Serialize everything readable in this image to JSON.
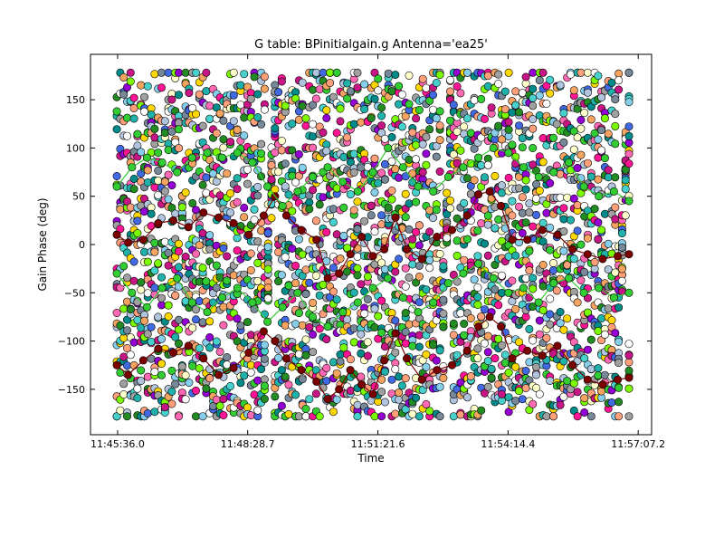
{
  "chart_data": {
    "type": "scatter",
    "title": "G table: BPinitialgain.g       Antenna='ea25'",
    "xlabel": "Time",
    "ylabel": "Gain Phase (deg)",
    "x_ticks": [
      {
        "t": 42336.0,
        "label": "11:45:36.0"
      },
      {
        "t": 42508.7,
        "label": "11:48:28.7"
      },
      {
        "t": 42681.6,
        "label": "11:51:21.6"
      },
      {
        "t": 42854.4,
        "label": "11:54:14.4"
      },
      {
        "t": 43027.2,
        "label": "11:57:07.2"
      }
    ],
    "y_ticks": [
      -150,
      -100,
      -50,
      0,
      50,
      100,
      150
    ],
    "xlim": [
      42300,
      43045
    ],
    "ylim": [
      -197,
      197
    ],
    "t_start": 42335,
    "t_end": 43015,
    "series_colors": [
      "#ffffcc",
      "#ffd700",
      "#ff69b4",
      "#ff1493",
      "#9400d3",
      "#4169e1",
      "#008b8b",
      "#20b2aa",
      "#48d1cc",
      "#87ceeb",
      "#b0c4de",
      "#778899",
      "#a0a0a0",
      "#7cfc00",
      "#32cd32",
      "#228b22",
      "#ffa07a",
      "#f4a460",
      "#c71585",
      "#ffffff"
    ],
    "highlight_series": [
      {
        "name": "",
        "color": "#7a0000",
        "points": [
          [
            42335,
            -125
          ],
          [
            42350,
            -135
          ],
          [
            42370,
            -120
          ],
          [
            42390,
            -108
          ],
          [
            42410,
            -112
          ],
          [
            42430,
            -105
          ],
          [
            42450,
            -118
          ],
          [
            42470,
            -135
          ],
          [
            42490,
            -128
          ],
          [
            42510,
            -112
          ],
          [
            42530,
            -90
          ],
          [
            42545,
            -100
          ],
          [
            42560,
            -118
          ],
          [
            42580,
            -130
          ],
          [
            42600,
            -142
          ],
          [
            42615,
            -160
          ],
          [
            42630,
            -150
          ],
          [
            42645,
            -130
          ],
          [
            42660,
            -145
          ],
          [
            42675,
            -155
          ],
          [
            42690,
            -120
          ],
          [
            42705,
            -92
          ],
          [
            42720,
            -118
          ],
          [
            42740,
            -140
          ],
          [
            42760,
            -130
          ],
          [
            42780,
            -125
          ],
          [
            42800,
            -110
          ],
          [
            42815,
            -85
          ],
          [
            42830,
            -75
          ],
          [
            42845,
            -85
          ],
          [
            42860,
            -118
          ],
          [
            42880,
            -110
          ],
          [
            42900,
            -115
          ],
          [
            42920,
            -105
          ],
          [
            42940,
            -125
          ],
          [
            42960,
            -140
          ],
          [
            42980,
            -145
          ],
          [
            43000,
            -140
          ],
          [
            43015,
            -138
          ]
        ]
      },
      {
        "name": "",
        "color": "#7a0000",
        "points": [
          [
            42335,
            10
          ],
          [
            42350,
            2
          ],
          [
            42370,
            5
          ],
          [
            42390,
            22
          ],
          [
            42410,
            25
          ],
          [
            42430,
            18
          ],
          [
            42450,
            33
          ],
          [
            42470,
            28
          ],
          [
            42490,
            22
          ],
          [
            42510,
            10
          ],
          [
            42530,
            30
          ],
          [
            42545,
            50
          ],
          [
            42560,
            30
          ],
          [
            42580,
            15
          ],
          [
            42600,
            5
          ],
          [
            42615,
            -35
          ],
          [
            42630,
            -30
          ],
          [
            42645,
            -10
          ],
          [
            42660,
            8
          ],
          [
            42675,
            -12
          ],
          [
            42690,
            -5
          ],
          [
            42705,
            28
          ],
          [
            42720,
            -5
          ],
          [
            42740,
            -15
          ],
          [
            42760,
            8
          ],
          [
            42780,
            15
          ],
          [
            42800,
            30
          ],
          [
            42815,
            52
          ],
          [
            42830,
            55
          ],
          [
            42845,
            40
          ],
          [
            42860,
            5
          ],
          [
            42880,
            5
          ],
          [
            42900,
            15
          ],
          [
            42920,
            10
          ],
          [
            42940,
            -5
          ],
          [
            42960,
            -10
          ],
          [
            42980,
            -15
          ],
          [
            43000,
            -12
          ],
          [
            43015,
            -10
          ]
        ]
      },
      {
        "name": "",
        "color": "#32cd32",
        "points": [
          [
            42335,
            60
          ],
          [
            42355,
            80
          ],
          [
            42375,
            90
          ],
          [
            42395,
            85
          ],
          [
            42415,
            75
          ],
          [
            42435,
            90
          ],
          [
            42455,
            95
          ],
          [
            42475,
            90
          ],
          [
            42495,
            95
          ],
          [
            42515,
            85
          ],
          [
            42535,
            60
          ],
          [
            42555,
            40
          ],
          [
            42575,
            55
          ],
          [
            42595,
            70
          ],
          [
            42615,
            80
          ],
          [
            42635,
            65
          ],
          [
            42655,
            55
          ],
          [
            42675,
            75
          ],
          [
            42695,
            100
          ],
          [
            42715,
            80
          ],
          [
            42735,
            60
          ],
          [
            42755,
            55
          ],
          [
            42775,
            70
          ],
          [
            42795,
            80
          ],
          [
            42815,
            90
          ],
          [
            42835,
            100
          ],
          [
            42855,
            95
          ],
          [
            42875,
            80
          ],
          [
            42895,
            70
          ],
          [
            42915,
            75
          ],
          [
            42935,
            85
          ],
          [
            42955,
            60
          ],
          [
            42975,
            50
          ],
          [
            42995,
            55
          ],
          [
            43015,
            45
          ]
        ]
      },
      {
        "name": "",
        "color": "#32cd32",
        "points": [
          [
            42335,
            -30
          ],
          [
            42355,
            -50
          ],
          [
            42375,
            -65
          ],
          [
            42395,
            -45
          ],
          [
            42415,
            -35
          ],
          [
            42435,
            -60
          ],
          [
            42455,
            -70
          ],
          [
            42475,
            -55
          ],
          [
            42495,
            -45
          ],
          [
            42515,
            -60
          ],
          [
            42535,
            -80
          ],
          [
            42555,
            -65
          ],
          [
            42575,
            -50
          ],
          [
            42595,
            -75
          ],
          [
            42615,
            -85
          ],
          [
            42635,
            -70
          ],
          [
            42655,
            -60
          ],
          [
            42675,
            -45
          ],
          [
            42695,
            -35
          ],
          [
            42715,
            -55
          ],
          [
            42735,
            -70
          ],
          [
            42755,
            -60
          ],
          [
            42775,
            -40
          ],
          [
            42795,
            -30
          ],
          [
            42815,
            -20
          ],
          [
            42835,
            -35
          ],
          [
            42855,
            -50
          ],
          [
            42875,
            -45
          ],
          [
            42895,
            -60
          ],
          [
            42915,
            -40
          ],
          [
            42935,
            -35
          ],
          [
            42955,
            -50
          ],
          [
            42975,
            -45
          ],
          [
            42995,
            -55
          ],
          [
            43015,
            -50
          ]
        ]
      }
    ],
    "grid": false,
    "legend": "none"
  }
}
